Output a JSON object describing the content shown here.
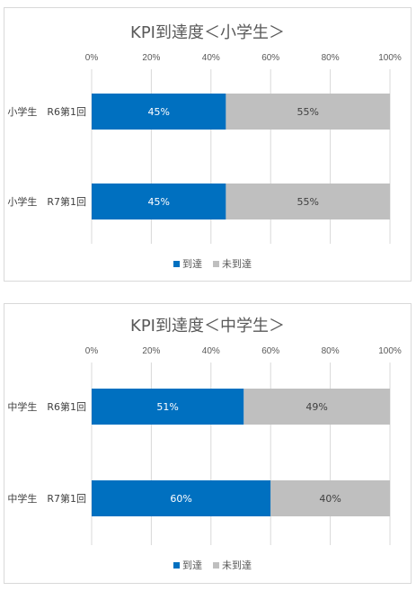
{
  "colors": {
    "reached": "#0070C0",
    "not_reached": "#BFBFBF",
    "grid": "#D9D9D9",
    "label_on_blue": "#FFFFFF",
    "label_on_gray": "#404040"
  },
  "chart_data": [
    {
      "type": "bar",
      "orientation": "horizontal",
      "stacked": "percent",
      "title": "KPI到達度＜小学生＞",
      "categories": [
        "小学生　R6第1回",
        "小学生　R7第1回"
      ],
      "series": [
        {
          "name": "到達",
          "values": [
            45,
            45
          ],
          "labels": [
            "45%",
            "45%"
          ]
        },
        {
          "name": "未到達",
          "values": [
            55,
            55
          ],
          "labels": [
            "55%",
            "55%"
          ]
        }
      ],
      "xlim": [
        0,
        100
      ],
      "ticks": [
        "0%",
        "20%",
        "40%",
        "60%",
        "80%",
        "100%"
      ],
      "grid": true,
      "legend": "bottom"
    },
    {
      "type": "bar",
      "orientation": "horizontal",
      "stacked": "percent",
      "title": "KPI到達度＜中学生＞",
      "categories": [
        "中学生　R6第1回",
        "中学生　R7第1回"
      ],
      "series": [
        {
          "name": "到達",
          "values": [
            51,
            60
          ],
          "labels": [
            "51%",
            "60%"
          ]
        },
        {
          "name": "未到達",
          "values": [
            49,
            40
          ],
          "labels": [
            "49%",
            "40%"
          ]
        }
      ],
      "xlim": [
        0,
        100
      ],
      "ticks": [
        "0%",
        "20%",
        "40%",
        "60%",
        "80%",
        "100%"
      ],
      "grid": true,
      "legend": "bottom"
    }
  ]
}
